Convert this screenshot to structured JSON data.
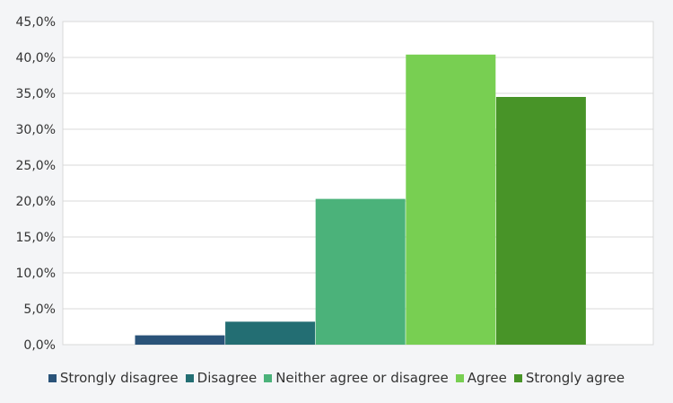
{
  "chart_data": {
    "type": "bar",
    "categories": [
      "Strongly disagree",
      "Disagree",
      "Neither agree or disagree",
      "Agree",
      "Strongly agree"
    ],
    "series": [
      {
        "name": "Strongly disagree",
        "value": 1.3,
        "color": "#2a5379"
      },
      {
        "name": "Disagree",
        "value": 3.2,
        "color": "#236e73"
      },
      {
        "name": "Neither agree or disagree",
        "value": 20.3,
        "color": "#4bb27a"
      },
      {
        "name": "Agree",
        "value": 40.4,
        "color": "#78cf52"
      },
      {
        "name": "Strongly agree",
        "value": 34.5,
        "color": "#489428"
      }
    ],
    "ylim": [
      0,
      45
    ],
    "yticks": [
      "0,0%",
      "5,0%",
      "10,0%",
      "15,0%",
      "20,0%",
      "25,0%",
      "30,0%",
      "35,0%",
      "40,0%",
      "45,0%"
    ],
    "grid": true,
    "legend_position": "bottom",
    "title": "",
    "xlabel": "",
    "ylabel": ""
  }
}
